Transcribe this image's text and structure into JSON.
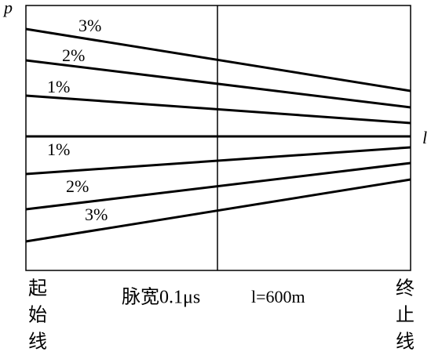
{
  "axis_labels": {
    "y": "p",
    "x": "l"
  },
  "line_labels": {
    "upper": [
      "3%",
      "2%",
      "1%"
    ],
    "lower": [
      "1%",
      "2%",
      "3%"
    ]
  },
  "start_line": [
    "起",
    "始",
    "线"
  ],
  "pulse_width": "脉宽0.1μs",
  "length": "l=600m",
  "end_line": [
    "终",
    "止",
    "线"
  ]
}
